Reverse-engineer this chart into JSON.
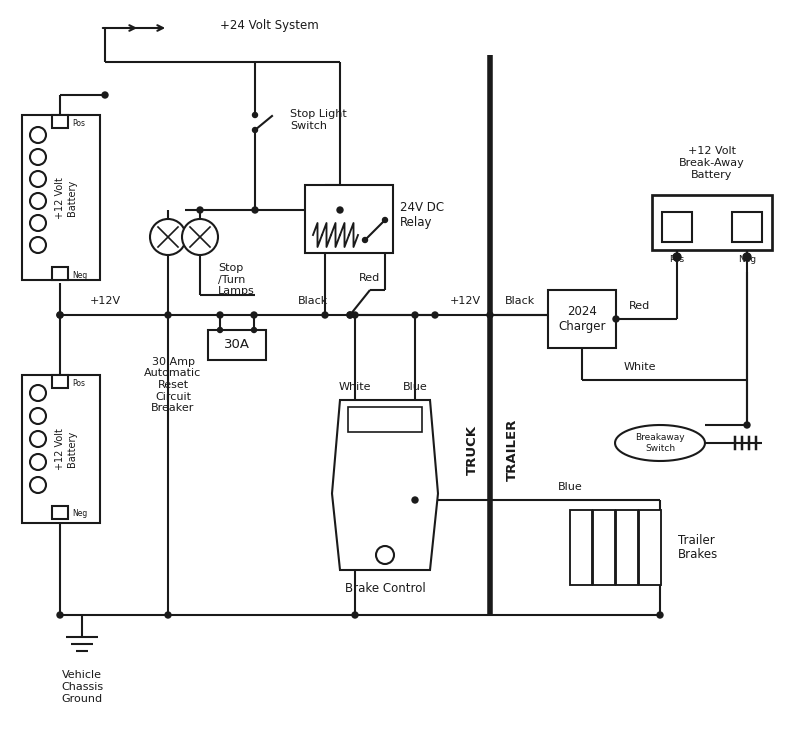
{
  "bg_color": "#ffffff",
  "line_color": "#1a1a1a",
  "lw": 1.5,
  "blw": 4.0,
  "fig_w": 8.0,
  "fig_h": 7.31,
  "dpi": 100,
  "labels": {
    "pos24v": "+24 Volt System",
    "stop_light": "Stop Light\nSwitch",
    "stop_turn": "Stop\n/Turn\nLamps",
    "relay": "24V DC\nRelay",
    "battery1_label": "+12 Volt\nBattery",
    "battery2_label": "+12 Volt\nBattery",
    "plus12v_left": "+12V",
    "plus12v_mid": "+12V",
    "red1": "Red",
    "black1": "Black",
    "white1": "White",
    "blue1": "Blue",
    "red2": "Red",
    "white2": "White",
    "blue2": "Blue",
    "black2": "Black",
    "breaker_val": "30A",
    "breaker_desc": "30 Amp\nAutomatic\nReset\nCircuit\nBreaker",
    "charger": "2024\nCharger",
    "breakaway": "Breakaway\nSwitch",
    "bkaway_batt": "+12 Volt\nBreak-Away\nBattery",
    "pos": "Pos",
    "neg": "Neg",
    "trailer_brakes": "Trailer\nBrakes",
    "brake_control": "Brake Control",
    "truck": "TRUCK",
    "trailer": "TRAILER",
    "ground": "Vehicle\nChassis\nGround"
  }
}
